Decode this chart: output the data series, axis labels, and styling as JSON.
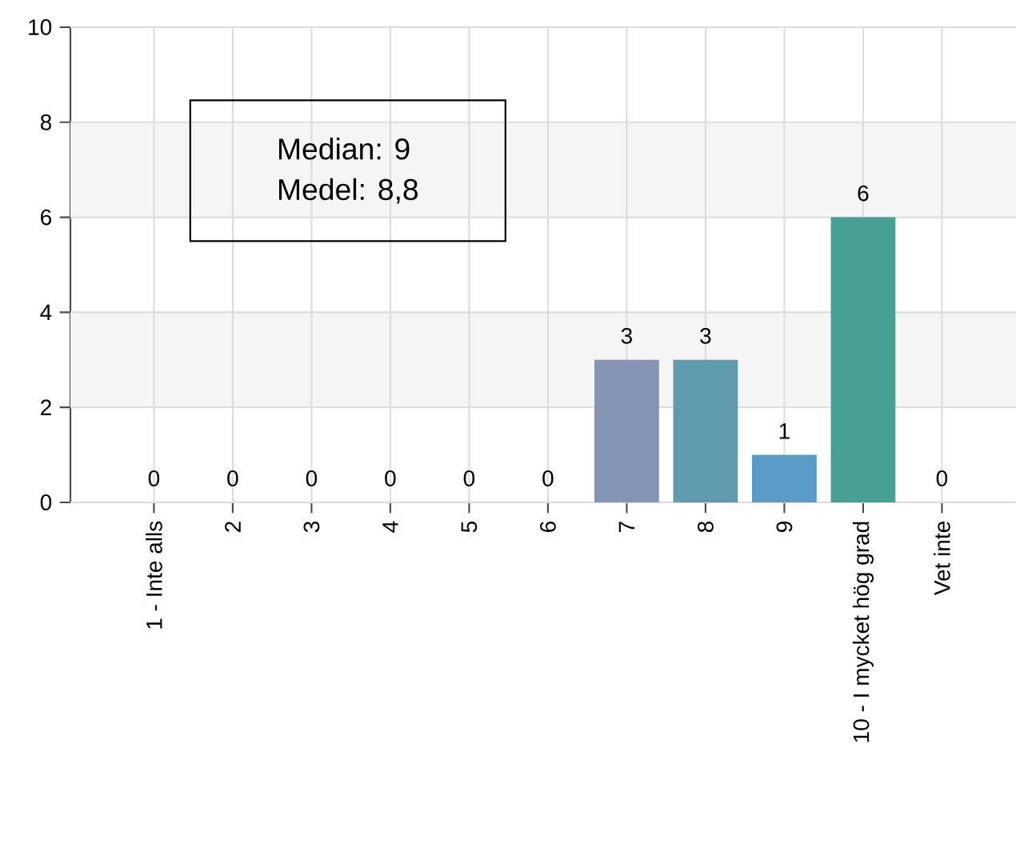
{
  "chart_data": {
    "type": "bar",
    "categories": [
      "1 - Inte alls",
      "2",
      "3",
      "4",
      "5",
      "6",
      "7",
      "8",
      "9",
      "10 - I mycket hög grad",
      "Vet inte"
    ],
    "values": [
      0,
      0,
      0,
      0,
      0,
      0,
      3,
      3,
      1,
      6,
      0
    ],
    "colors": [
      "#8c8fb8",
      "#8a93b6",
      "#8897b4",
      "#8694b4",
      "#8494b4",
      "#8494b4",
      "#8494b4",
      "#5f9aae",
      "#5b9bc8",
      "#48a095",
      "#48a095"
    ],
    "ylim": [
      0,
      10
    ],
    "yticks": [
      0,
      2,
      4,
      6,
      8,
      10
    ],
    "grid": true,
    "data_labels": true,
    "bands": [
      {
        "axis": "y",
        "from": 2,
        "to": 4,
        "color": "#f5f5f5"
      },
      {
        "axis": "y",
        "from": 6,
        "to": 8,
        "color": "#f5f5f5"
      }
    ],
    "annotations": [
      "Median: 9",
      "Medel: 8,8"
    ]
  }
}
